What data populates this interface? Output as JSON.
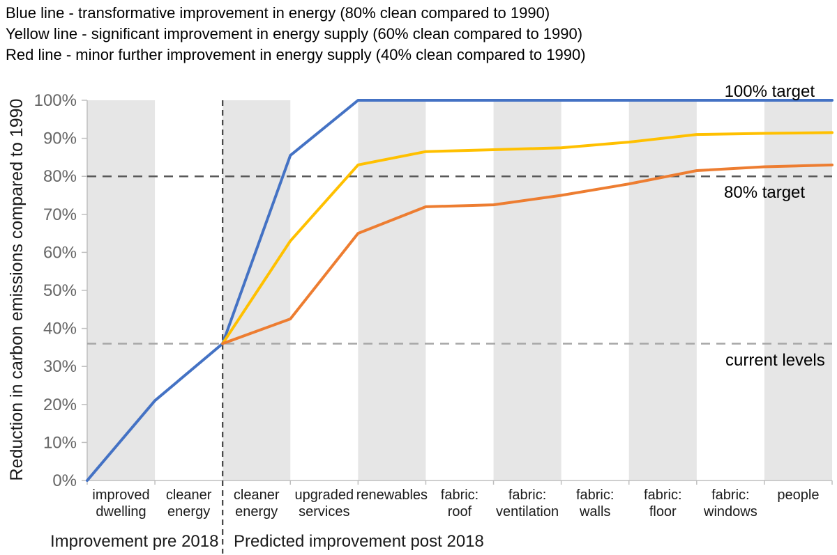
{
  "legend": {
    "blue": "Blue line - transformative improvement in energy (80% clean compared to 1990)",
    "yellow": "Yellow line - significant improvement in energy supply (60% clean compared to 1990)",
    "red": "Red line - minor further improvement in energy supply (40% clean compared to 1990)"
  },
  "chart_data": {
    "type": "line",
    "title": "",
    "xlabel": "",
    "ylabel": "Reduction in carbon emissions compared to 1990",
    "ylim": [
      0,
      100
    ],
    "ytick_labels": [
      "0%",
      "10%",
      "20%",
      "30%",
      "40%",
      "50%",
      "60%",
      "70%",
      "80%",
      "90%",
      "100%"
    ],
    "grid": "alternating vertical bands, no gridlines",
    "legend_position": "none (text key above chart)",
    "categories": [
      [
        "improved",
        "dwelling"
      ],
      [
        "cleaner",
        "energy"
      ],
      [
        "cleaner",
        "energy"
      ],
      [
        "upgraded",
        "services"
      ],
      [
        "renewables"
      ],
      [
        "fabric:",
        "roof"
      ],
      [
        "fabric:",
        "ventilation"
      ],
      [
        "fabric:",
        "walls"
      ],
      [
        "fabric:",
        "floor"
      ],
      [
        "fabric:",
        "windows"
      ],
      [
        "people"
      ]
    ],
    "x_axis_note": "Line vertices sit on the 12 category boundaries: values[0] is the starting level, values[i] is the cumulative reduction after completing category i-1. null = series not present yet.",
    "series": [
      {
        "name": "Blue line (transformative improvement, 80% clean)",
        "color": "#4472C4",
        "values": [
          0,
          21,
          36,
          85.5,
          100,
          100,
          100,
          100,
          100,
          100,
          100,
          100
        ]
      },
      {
        "name": "Yellow line (significant improvement, 60% clean)",
        "color": "#FFC000",
        "values": [
          null,
          null,
          36,
          63,
          83,
          86.5,
          87,
          87.5,
          89,
          91,
          91.3,
          91.5
        ]
      },
      {
        "name": "Red line (minor further improvement, 40% clean)",
        "color": "#ED7D31",
        "values": [
          null,
          null,
          36,
          42.5,
          65,
          72,
          72.5,
          75,
          78,
          81.5,
          82.5,
          83
        ]
      }
    ],
    "reference_lines": [
      {
        "value": 80,
        "color": "#595959",
        "dash": "13 9",
        "label": "80% target"
      },
      {
        "value": 36,
        "color": "#A6A6A6",
        "dash": "13 9",
        "label": "current levels"
      }
    ],
    "divider": {
      "after_category_index": 1,
      "color": "#404040",
      "dash": "8 6"
    },
    "annotations": [
      {
        "text": "100% target"
      },
      {
        "text": "80% target"
      },
      {
        "text": "current levels"
      }
    ],
    "sections": [
      {
        "label": "Improvement pre 2018",
        "categories": [
          0,
          1
        ]
      },
      {
        "label": "Predicted improvement post 2018",
        "categories": [
          2,
          10
        ]
      }
    ],
    "colors": {
      "band": "#E6E6E6",
      "axis": "#BFBFBF",
      "tick_label": "#666666",
      "text": "#1A1A1A",
      "annotation": "#000000"
    }
  }
}
